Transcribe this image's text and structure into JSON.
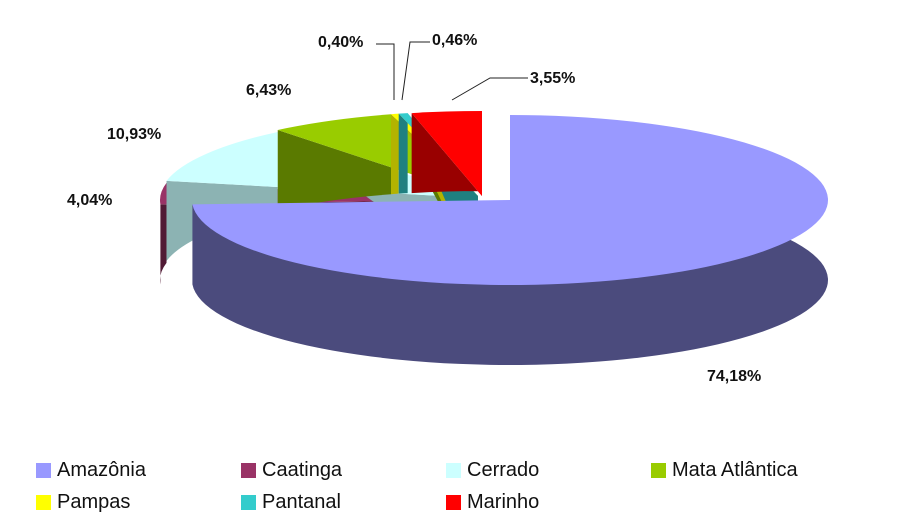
{
  "chart_data": {
    "type": "pie",
    "style": "3d-exploded",
    "title": "",
    "categories": [
      "Amazônia",
      "Caatinga",
      "Cerrado",
      "Mata Atlântica",
      "Pampas",
      "Pantanal",
      "Marinho"
    ],
    "values": [
      74.18,
      4.04,
      10.93,
      6.43,
      0.4,
      0.46,
      3.55
    ],
    "labels": [
      "74,18%",
      "4,04%",
      "10,93%",
      "6,43%",
      "0,40%",
      "0,46%",
      "3,55%"
    ],
    "colors": [
      "#9999ff",
      "#993366",
      "#ccffff",
      "#99cc00",
      "#ffff00",
      "#33cccc",
      "#ff0000"
    ],
    "side_colors": [
      "#4b4b7d",
      "#511a35",
      "#8cb3b3",
      "#5a7a00",
      "#b3b300",
      "#1f8080",
      "#990000"
    ],
    "legend_position": "bottom"
  },
  "legend": {
    "row1": [
      "Amazônia",
      "Caatinga",
      "Cerrado",
      "Mata Atlântica"
    ],
    "row2": [
      "Pampas",
      "Pantanal",
      "Marinho"
    ]
  }
}
